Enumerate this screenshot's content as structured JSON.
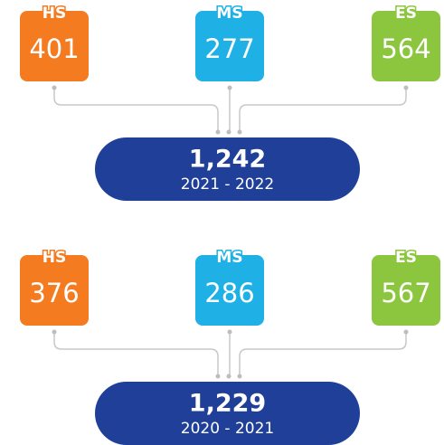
{
  "groups": [
    {
      "items": [
        {
          "label": "HS",
          "value": 401
        },
        {
          "label": "MS",
          "value": 277
        },
        {
          "label": "ES",
          "value": 564
        }
      ],
      "total": "1,242",
      "years": "2021 - 2022"
    },
    {
      "items": [
        {
          "label": "HS",
          "value": 376
        },
        {
          "label": "MS",
          "value": 286
        },
        {
          "label": "ES",
          "value": 567
        }
      ],
      "total": "1,229",
      "years": "2020 - 2021"
    }
  ]
}
